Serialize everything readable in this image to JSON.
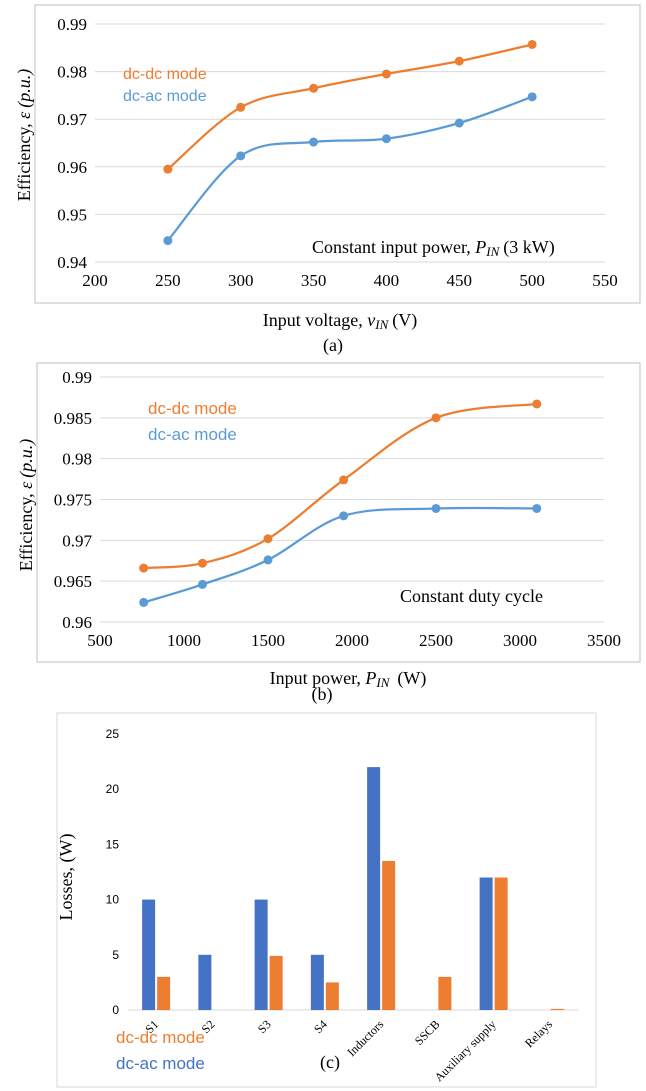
{
  "colors": {
    "dcdc": "#ED7D31",
    "dcac": "#4472C4",
    "dcac_line": "#5B9BD5",
    "grid": "#D9D9D9",
    "axis_text": "#595959",
    "frame": "#BFBFBF"
  },
  "chart_data": [
    {
      "type": "line",
      "x_ticks": [
        "200",
        "250",
        "300",
        "350",
        "400",
        "450",
        "500",
        "550"
      ],
      "y_ticks": [
        "0.94",
        "0.95",
        "0.96",
        "0.97",
        "0.98",
        "0.99"
      ],
      "xlim": [
        200,
        550
      ],
      "ylim": [
        0.94,
        0.99
      ],
      "series": [
        {
          "name": "dc-dc mode",
          "color": "#ED7D31",
          "x": [
            250,
            300,
            350,
            400,
            450,
            500
          ],
          "y": [
            0.9595,
            0.9725,
            0.9765,
            0.9795,
            0.9822,
            0.9857
          ]
        },
        {
          "name": "dc-ac mode",
          "color": "#5B9BD5",
          "x": [
            250,
            300,
            350,
            400,
            450,
            500
          ],
          "y": [
            0.9445,
            0.9623,
            0.9652,
            0.9659,
            0.9692,
            0.9747
          ]
        }
      ],
      "ylabel": {
        "main": "Efficiency, ",
        "sym": "ε",
        "unit": "(p.u.)"
      },
      "xlabel": {
        "main": "Input voltage, ",
        "sym": "v",
        "sub": "IN",
        "unit": "(V)"
      },
      "annotation": {
        "main": "Constant input power, ",
        "sym": "P",
        "sub": "IN",
        "unit": "(3 kW)"
      },
      "caption": "(a)",
      "legend_position": "top-left",
      "grid": true
    },
    {
      "type": "line",
      "x_ticks": [
        "500",
        "1000",
        "1500",
        "2000",
        "2500",
        "3000",
        "3500"
      ],
      "y_ticks": [
        "0.96",
        "0.965",
        "0.97",
        "0.975",
        "0.98",
        "0.985",
        "0.99"
      ],
      "xlim": [
        500,
        3500
      ],
      "ylim": [
        0.96,
        0.99
      ],
      "series": [
        {
          "name": "dc-dc mode",
          "color": "#ED7D31",
          "x": [
            760,
            1110,
            1500,
            1950,
            2500,
            3100
          ],
          "y": [
            0.9666,
            0.9672,
            0.9702,
            0.9774,
            0.985,
            0.9867
          ]
        },
        {
          "name": "dc-ac mode",
          "color": "#5B9BD5",
          "x": [
            760,
            1110,
            1500,
            1950,
            2500,
            3100
          ],
          "y": [
            0.9624,
            0.9646,
            0.9676,
            0.973,
            0.9739,
            0.9739
          ]
        }
      ],
      "ylabel": {
        "main": "Efficiency, ",
        "sym": "ε",
        "unit": "(p.u.)"
      },
      "xlabel": {
        "main": "Input power, ",
        "sym": "P",
        "sub": "IN",
        "unit": "(W)"
      },
      "annotation": "Constant duty cycle",
      "caption": "(b)",
      "legend_position": "top-left",
      "grid": true
    },
    {
      "type": "bar",
      "categories": [
        "S1",
        "S2",
        "S3",
        "S4",
        "Inductors",
        "SSCB",
        "Auxiliary supply",
        "Relays"
      ],
      "y_ticks": [
        "0",
        "5",
        "10",
        "15",
        "20",
        "25"
      ],
      "ylim": [
        0,
        25
      ],
      "series": [
        {
          "name": "dc-ac mode",
          "color": "#4472C4",
          "values": [
            10,
            5,
            10,
            5,
            22,
            0,
            12,
            0
          ]
        },
        {
          "name": "dc-dc mode",
          "color": "#ED7D31",
          "values": [
            3,
            0,
            4.9,
            2.5,
            13.5,
            3,
            12,
            0.1
          ]
        }
      ],
      "ylabel": "Losses, (W)",
      "legend": [
        "dc-dc mode",
        "dc-ac mode"
      ],
      "caption": "(c)",
      "legend_position": "bottom-left",
      "grid": false
    }
  ]
}
